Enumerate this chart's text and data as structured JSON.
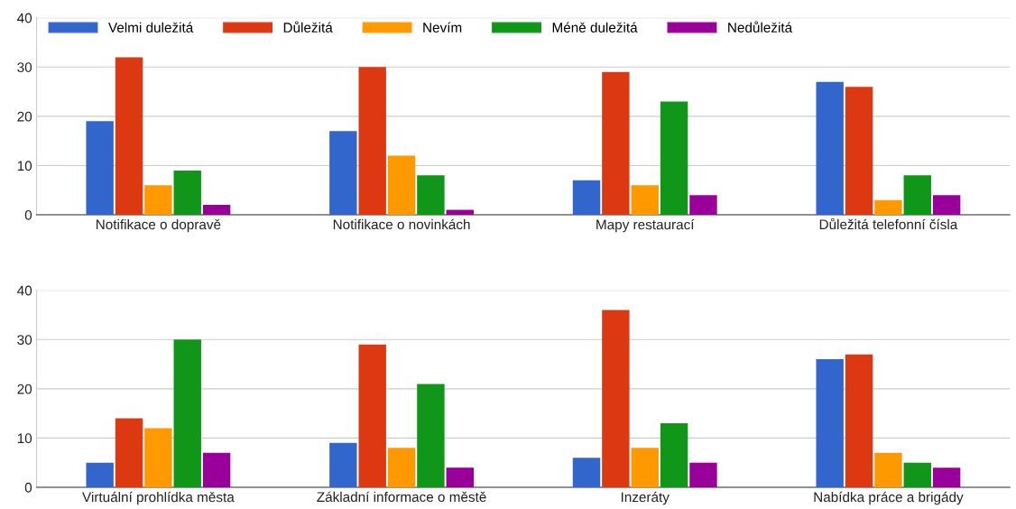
{
  "chart_data": [
    {
      "type": "bar",
      "categories": [
        "Notifikace o dopravě",
        "Notifikace o novinkách",
        "Mapy restaurací",
        "Důležitá telefonní čísla"
      ],
      "series": [
        {
          "name": "Velmi duležitá",
          "color": "#3366cc",
          "values": [
            19,
            17,
            7,
            27
          ]
        },
        {
          "name": "Důležitá",
          "color": "#dc3912",
          "values": [
            32,
            30,
            29,
            26
          ]
        },
        {
          "name": "Nevím",
          "color": "#ff9900",
          "values": [
            6,
            12,
            6,
            3
          ]
        },
        {
          "name": "Méně duležitá",
          "color": "#109618",
          "values": [
            9,
            8,
            23,
            8
          ]
        },
        {
          "name": "Nedůležitá",
          "color": "#990099",
          "values": [
            2,
            1,
            4,
            4
          ]
        }
      ],
      "ylim": [
        0,
        40
      ],
      "yticks": [
        0,
        10,
        20,
        30,
        40
      ],
      "grid": "y",
      "legend": "top left"
    },
    {
      "type": "bar",
      "categories": [
        "Virtuální prohlídka města",
        "Základní informace o městě",
        "Inzeráty",
        "Nabídka práce a brigády"
      ],
      "series": [
        {
          "color": "#3366cc",
          "values": [
            5,
            9,
            6,
            26
          ]
        },
        {
          "color": "#dc3912",
          "values": [
            14,
            29,
            36,
            27
          ]
        },
        {
          "color": "#ff9900",
          "values": [
            12,
            8,
            8,
            7
          ]
        },
        {
          "color": "#109618",
          "values": [
            30,
            21,
            13,
            5
          ]
        },
        {
          "color": "#990099",
          "values": [
            7,
            4,
            5,
            4
          ]
        }
      ],
      "ylim": [
        0,
        40
      ],
      "yticks": [
        0,
        10,
        20,
        30,
        40
      ],
      "grid": "y"
    }
  ]
}
